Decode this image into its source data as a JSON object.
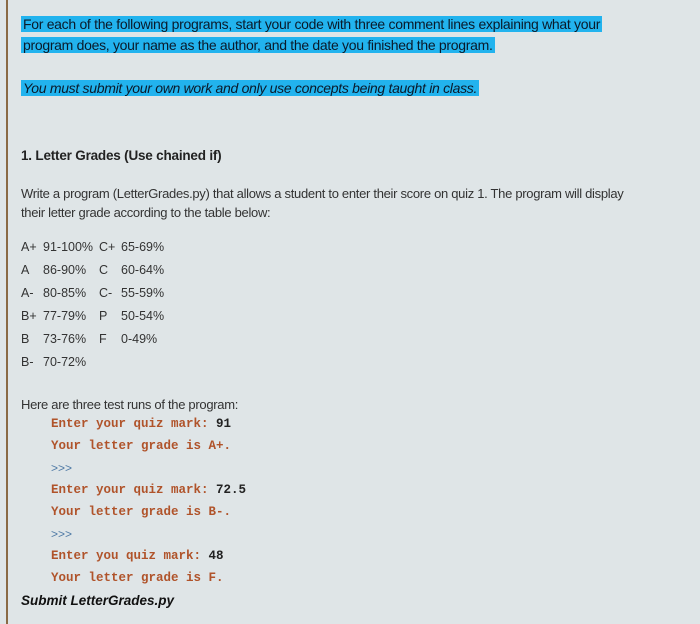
{
  "intro": {
    "line1": "For each of the following programs, start your code with three comment lines explaining what your",
    "line2": "program does, your name as the author, and the date you finished the program.",
    "notice": "You must submit your own work and only use concepts being taught in class."
  },
  "section": {
    "title": "1. Letter Grades (Use chained if)",
    "desc_line1": "Write a program (LetterGrades.py) that allows a student to enter their score on quiz 1. The program will display",
    "desc_line2": "their letter grade according to the table below:"
  },
  "grade_table": [
    [
      "A+",
      "91-100%",
      "C+",
      "65-69%"
    ],
    [
      "A",
      "86-90%",
      "C",
      "60-64%"
    ],
    [
      "A-",
      "80-85%",
      "C-",
      "55-59%"
    ],
    [
      "B+",
      "77-79%",
      "P",
      "50-54%"
    ],
    [
      "B",
      "73-76%",
      "F",
      "0-49%"
    ],
    [
      "B-",
      "70-72%",
      "",
      ""
    ]
  ],
  "test_runs": {
    "heading": "Here are three test runs of the program:",
    "lines": [
      {
        "text": "Enter your quiz mark: ",
        "input": "91"
      },
      {
        "text": "Your letter grade is A+.",
        "input": ""
      },
      {
        "prompt": ">>>"
      },
      {
        "text": "Enter your quiz mark: ",
        "input": "72.5"
      },
      {
        "text": "Your letter grade is B-.",
        "input": ""
      },
      {
        "prompt": ">>>"
      },
      {
        "text": "Enter you quiz mark: ",
        "input": "48"
      },
      {
        "text": "Your letter grade is F.",
        "input": ""
      }
    ]
  },
  "submit": "Submit LetterGrades.py",
  "colors": {
    "highlight": "#22b3ee",
    "code_text": "#b0532a",
    "prompt": "#4f7aa5",
    "background": "#dfe5e7"
  }
}
